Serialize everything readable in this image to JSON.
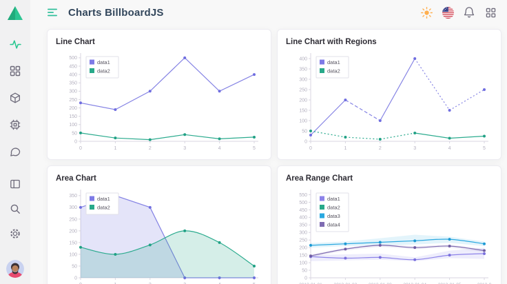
{
  "sidebar": {
    "logo_icon": "triangle-logo",
    "nav": [
      {
        "icon": "activity-icon",
        "name": "charts",
        "active": true
      },
      {
        "icon": "grid-icon",
        "name": "dashboard",
        "active": false
      },
      {
        "icon": "box-icon",
        "name": "components",
        "active": false
      },
      {
        "icon": "cpu-icon",
        "name": "system",
        "active": false
      },
      {
        "icon": "message-circle-icon",
        "name": "chat",
        "active": false
      }
    ],
    "bottom": [
      {
        "icon": "layout-icon",
        "name": "layout"
      },
      {
        "icon": "search-icon",
        "name": "search"
      },
      {
        "icon": "gear-icon",
        "name": "settings"
      }
    ],
    "avatar_icon": "user-avatar"
  },
  "header": {
    "menu_icon": "hamburger-menu-icon",
    "title": "Charts BillboardJS",
    "actions": [
      {
        "icon": "sun-icon"
      },
      {
        "icon": "us-flag-icon"
      },
      {
        "icon": "bell-icon"
      },
      {
        "icon": "apps-grid-icon"
      }
    ]
  },
  "colors": {
    "accent_teal": "#28c790",
    "series_purple": "#8583e4",
    "series_green": "#2bab8e",
    "series_blue": "#2aa8e0",
    "series_dark_purple": "#7f6cb2",
    "background": "#f8f8f8",
    "card": "#ffffff",
    "title_text": "#33475c",
    "tick_text": "#b2afbe"
  },
  "chart_data": [
    {
      "type": "line",
      "title": "Line Chart",
      "x_labels": [
        "0",
        "1",
        "2",
        "3",
        "4",
        "5"
      ],
      "yticks": [
        0,
        50,
        100,
        150,
        200,
        250,
        300,
        350,
        400,
        450,
        500
      ],
      "ylim": [
        0,
        520
      ],
      "legend": [
        {
          "label": "data1",
          "color": "#7d7ae6"
        },
        {
          "label": "data2",
          "color": "#28a98a"
        }
      ],
      "series": [
        {
          "name": "data1",
          "color": "#8583e4",
          "point": "#706ee0",
          "values": [
            230,
            190,
            300,
            500,
            300,
            400
          ]
        },
        {
          "name": "data2",
          "color": "#2bab8e",
          "point": "#21a185",
          "values": [
            50,
            20,
            10,
            40,
            15,
            25
          ]
        }
      ]
    },
    {
      "type": "line",
      "title": "Line Chart with Regions",
      "x_labels": [
        "0",
        "1",
        "2",
        "3",
        "4",
        "5"
      ],
      "yticks": [
        0,
        50,
        100,
        150,
        200,
        250,
        300,
        350,
        400
      ],
      "ylim": [
        0,
        420
      ],
      "legend": [
        {
          "label": "data1",
          "color": "#7d7ae6"
        },
        {
          "label": "data2",
          "color": "#28a98a"
        }
      ],
      "series": [
        {
          "name": "data1",
          "color": "#8583e4",
          "point": "#706ee0",
          "values": [
            30,
            200,
            100,
            400,
            150,
            250
          ],
          "dashes": [
            "",
            "5 3",
            "",
            "2 3",
            "2 3"
          ]
        },
        {
          "name": "data2",
          "color": "#2bab8e",
          "point": "#21a185",
          "values": [
            50,
            20,
            10,
            40,
            15,
            25
          ],
          "dashes": [
            "2 3",
            "2 3",
            "2 3",
            "",
            ""
          ]
        }
      ]
    },
    {
      "type": "area",
      "title": "Area Chart",
      "x_labels": [
        "0",
        "1",
        "2",
        "3",
        "4",
        "5"
      ],
      "yticks": [
        0,
        50,
        100,
        150,
        200,
        250,
        300,
        350
      ],
      "ylim": [
        0,
        370
      ],
      "legend": [
        {
          "label": "data1",
          "color": "#7d7ae6"
        },
        {
          "label": "data2",
          "color": "#28a98a"
        }
      ],
      "series": [
        {
          "name": "data1",
          "color": "#8583e4",
          "point": "#706ee0",
          "values": [
            300,
            350,
            300,
            0,
            0,
            0
          ],
          "area": true,
          "areaOpacity": 0.22
        },
        {
          "name": "data2",
          "color": "#2bab8e",
          "point": "#21a185",
          "values": [
            130,
            100,
            140,
            200,
            150,
            50
          ],
          "area": true,
          "spline": true,
          "areaOpacity": 0.2
        }
      ]
    },
    {
      "type": "area-range",
      "title": "Area Range Chart",
      "x_labels": [
        "2013-01-01",
        "2013-01-02",
        "2013-01-03",
        "2013-01-04",
        "2013-01-05",
        "2013-0"
      ],
      "x_label_size": 6.6,
      "yticks": [
        0,
        50,
        100,
        150,
        200,
        250,
        300,
        350,
        400,
        450,
        500,
        550
      ],
      "ylim": [
        0,
        575
      ],
      "legend": [
        {
          "label": "data1",
          "color": "#8d83e9"
        },
        {
          "label": "data2",
          "color": "#28a98a"
        },
        {
          "label": "data3",
          "color": "#2aa8e0"
        },
        {
          "label": "data4",
          "color": "#7f6cb2"
        }
      ],
      "series": [
        {
          "name": "data1",
          "color": "#8d83e9",
          "point": "#7a70dd",
          "spline": true,
          "values": [
            140,
            130,
            135,
            120,
            150,
            160
          ],
          "band": {
            "upper": [
              150,
              155,
              160,
              135,
              180,
              199
            ],
            "lower": [
              110,
              115,
              120,
              110,
              130,
              125
            ],
            "opacity": 0.15
          }
        },
        {
          "name": "data2",
          "color": "#28a98a",
          "values": []
        },
        {
          "name": "data3",
          "color": "#2aa8e0",
          "point": "#1d9ad4",
          "spline": true,
          "values": [
            215,
            225,
            235,
            245,
            255,
            225
          ],
          "band": {
            "upper": [
              230,
              240,
              262,
              285,
              272,
              240
            ],
            "lower": [
              200,
              210,
              215,
              220,
              232,
              210
            ],
            "opacity": 0.13
          }
        },
        {
          "name": "data4",
          "color": "#7f6cb2",
          "point": "#6f5da3",
          "spline": true,
          "values": [
            145,
            190,
            215,
            200,
            210,
            180
          ],
          "band": {
            "upper": [
              155,
              200,
              225,
              210,
              220,
              190
            ],
            "lower": [
              135,
              180,
              205,
              190,
              200,
              170
            ],
            "opacity": 0.1
          }
        }
      ]
    }
  ]
}
